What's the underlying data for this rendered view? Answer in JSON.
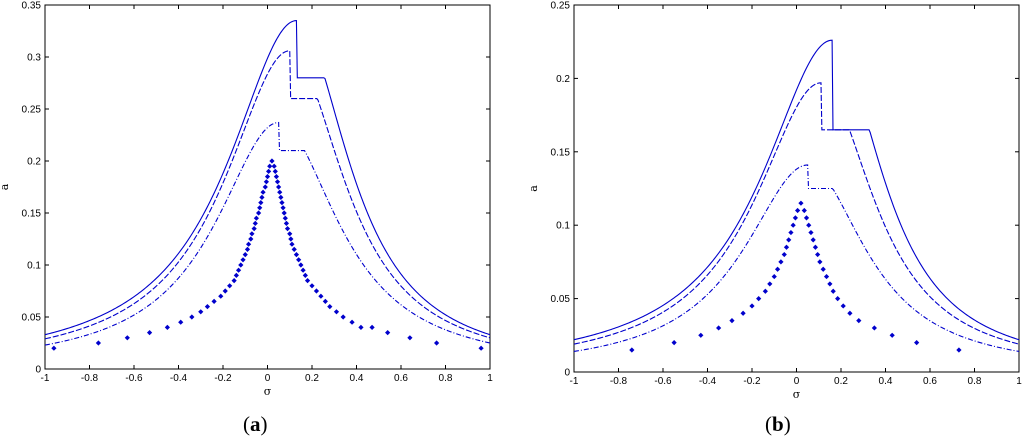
{
  "chart_data": [
    {
      "type": "line",
      "panel_label": "(a)",
      "panel_letter": "a",
      "xlabel": "σ",
      "ylabel": "a",
      "xlim": [
        -1,
        1
      ],
      "ylim": [
        0,
        0.35
      ],
      "xticks": [
        -1,
        -0.8,
        -0.6,
        -0.4,
        -0.2,
        0,
        0.2,
        0.4,
        0.6,
        0.8,
        1
      ],
      "xtick_labels": [
        "-1",
        "-0.8",
        "-0.6",
        "-0.4",
        "-0.2",
        "0",
        "0.2",
        "0.4",
        "0.6",
        "0.8",
        "1"
      ],
      "yticks": [
        0,
        0.05,
        0.1,
        0.15,
        0.2,
        0.25,
        0.3,
        0.35
      ],
      "ytick_labels": [
        "0",
        "0.05",
        "0.1",
        "0.15",
        "0.2",
        "0.25",
        "0.3",
        "0.35"
      ],
      "grid": false,
      "color": "#0000cc",
      "series": [
        {
          "style": "solid",
          "peak_x": 0.13,
          "peak_y": 0.335,
          "drop_y": 0.28,
          "end_y_left": 0.033,
          "end_y_right": 0.033
        },
        {
          "style": "dashed",
          "peak_x": 0.1,
          "peak_y": 0.306,
          "drop_y": 0.26,
          "end_y_left": 0.029,
          "end_y_right": 0.03
        },
        {
          "style": "dashdot",
          "peak_x": 0.05,
          "peak_y": 0.237,
          "drop_y": 0.21,
          "end_y_left": 0.023,
          "end_y_right": 0.025
        },
        {
          "style": "markers",
          "peak_x": 0.02,
          "peak_y": 0.2,
          "points": [
            [
              -0.96,
              0.02
            ],
            [
              -0.76,
              0.025
            ],
            [
              -0.63,
              0.03
            ],
            [
              -0.53,
              0.035
            ],
            [
              -0.45,
              0.04
            ],
            [
              -0.39,
              0.045
            ],
            [
              -0.34,
              0.05
            ],
            [
              -0.3,
              0.055
            ],
            [
              -0.27,
              0.06
            ],
            [
              -0.24,
              0.065
            ],
            [
              -0.21,
              0.07
            ],
            [
              -0.19,
              0.075
            ],
            [
              -0.17,
              0.08
            ],
            [
              -0.15,
              0.085
            ],
            [
              -0.14,
              0.09
            ],
            [
              -0.13,
              0.095
            ],
            [
              -0.12,
              0.1
            ],
            [
              -0.11,
              0.105
            ],
            [
              -0.1,
              0.11
            ],
            [
              -0.09,
              0.115
            ],
            [
              -0.085,
              0.12
            ],
            [
              -0.075,
              0.125
            ],
            [
              -0.07,
              0.13
            ],
            [
              -0.06,
              0.135
            ],
            [
              -0.055,
              0.14
            ],
            [
              -0.05,
              0.145
            ],
            [
              -0.04,
              0.15
            ],
            [
              -0.035,
              0.155
            ],
            [
              -0.03,
              0.16
            ],
            [
              -0.025,
              0.165
            ],
            [
              -0.02,
              0.17
            ],
            [
              -0.01,
              0.175
            ],
            [
              -0.005,
              0.18
            ],
            [
              0.0,
              0.185
            ],
            [
              0.005,
              0.19
            ],
            [
              0.01,
              0.195
            ],
            [
              0.02,
              0.2
            ],
            [
              0.03,
              0.195
            ],
            [
              0.035,
              0.19
            ],
            [
              0.04,
              0.185
            ],
            [
              0.045,
              0.18
            ],
            [
              0.05,
              0.175
            ],
            [
              0.055,
              0.17
            ],
            [
              0.06,
              0.165
            ],
            [
              0.065,
              0.16
            ],
            [
              0.07,
              0.155
            ],
            [
              0.075,
              0.15
            ],
            [
              0.08,
              0.145
            ],
            [
              0.085,
              0.14
            ],
            [
              0.09,
              0.135
            ],
            [
              0.1,
              0.13
            ],
            [
              0.105,
              0.125
            ],
            [
              0.11,
              0.12
            ],
            [
              0.12,
              0.115
            ],
            [
              0.13,
              0.11
            ],
            [
              0.14,
              0.105
            ],
            [
              0.15,
              0.1
            ],
            [
              0.16,
              0.095
            ],
            [
              0.17,
              0.09
            ],
            [
              0.18,
              0.085
            ],
            [
              0.2,
              0.08
            ],
            [
              0.22,
              0.075
            ],
            [
              0.24,
              0.07
            ],
            [
              0.26,
              0.065
            ],
            [
              0.28,
              0.06
            ],
            [
              0.31,
              0.055
            ],
            [
              0.34,
              0.05
            ],
            [
              0.38,
              0.045
            ],
            [
              0.42,
              0.04
            ],
            [
              0.47,
              0.04
            ],
            [
              0.54,
              0.035
            ],
            [
              0.64,
              0.03
            ],
            [
              0.76,
              0.025
            ],
            [
              0.96,
              0.02
            ]
          ]
        }
      ]
    },
    {
      "type": "line",
      "panel_label": "(b)",
      "panel_letter": "b",
      "xlabel": "σ",
      "ylabel": "a",
      "xlim": [
        -1,
        1
      ],
      "ylim": [
        0,
        0.25
      ],
      "xticks": [
        -1,
        -0.8,
        -0.6,
        -0.4,
        -0.2,
        0,
        0.2,
        0.4,
        0.6,
        0.8,
        1
      ],
      "xtick_labels": [
        "-1",
        "-0.8",
        "-0.6",
        "-0.4",
        "-0.2",
        "0",
        "0.2",
        "0.4",
        "0.6",
        "0.8",
        "1"
      ],
      "yticks": [
        0,
        0.05,
        0.1,
        0.15,
        0.2,
        0.25
      ],
      "ytick_labels": [
        "0",
        "0.05",
        "0.1",
        "0.15",
        "0.2",
        "0.25"
      ],
      "grid": false,
      "color": "#0000cc",
      "series": [
        {
          "style": "solid",
          "peak_x": 0.16,
          "peak_y": 0.226,
          "drop_y": 0.165,
          "end_y_left": 0.022,
          "end_y_right": 0.022
        },
        {
          "style": "dashed",
          "peak_x": 0.11,
          "peak_y": 0.197,
          "drop_y": 0.165,
          "end_y_left": 0.019,
          "end_y_right": 0.019
        },
        {
          "style": "dashdot",
          "peak_x": 0.05,
          "peak_y": 0.141,
          "drop_y": 0.125,
          "end_y_left": 0.014,
          "end_y_right": 0.014
        },
        {
          "style": "markers",
          "peak_x": 0.02,
          "peak_y": 0.115,
          "points": [
            [
              -0.74,
              0.015
            ],
            [
              -0.55,
              0.02
            ],
            [
              -0.43,
              0.025
            ],
            [
              -0.35,
              0.03
            ],
            [
              -0.29,
              0.035
            ],
            [
              -0.24,
              0.04
            ],
            [
              -0.2,
              0.045
            ],
            [
              -0.17,
              0.05
            ],
            [
              -0.14,
              0.055
            ],
            [
              -0.12,
              0.06
            ],
            [
              -0.1,
              0.065
            ],
            [
              -0.085,
              0.07
            ],
            [
              -0.07,
              0.075
            ],
            [
              -0.055,
              0.08
            ],
            [
              -0.045,
              0.085
            ],
            [
              -0.035,
              0.09
            ],
            [
              -0.025,
              0.095
            ],
            [
              -0.015,
              0.1
            ],
            [
              -0.005,
              0.105
            ],
            [
              0.005,
              0.11
            ],
            [
              0.02,
              0.115
            ],
            [
              0.035,
              0.11
            ],
            [
              0.045,
              0.105
            ],
            [
              0.055,
              0.1
            ],
            [
              0.065,
              0.095
            ],
            [
              0.075,
              0.09
            ],
            [
              0.085,
              0.085
            ],
            [
              0.095,
              0.08
            ],
            [
              0.105,
              0.075
            ],
            [
              0.12,
              0.07
            ],
            [
              0.135,
              0.065
            ],
            [
              0.15,
              0.06
            ],
            [
              0.165,
              0.055
            ],
            [
              0.185,
              0.05
            ],
            [
              0.21,
              0.045
            ],
            [
              0.24,
              0.04
            ],
            [
              0.28,
              0.035
            ],
            [
              0.35,
              0.03
            ],
            [
              0.43,
              0.025
            ],
            [
              0.54,
              0.02
            ],
            [
              0.73,
              0.015
            ]
          ]
        }
      ]
    }
  ]
}
